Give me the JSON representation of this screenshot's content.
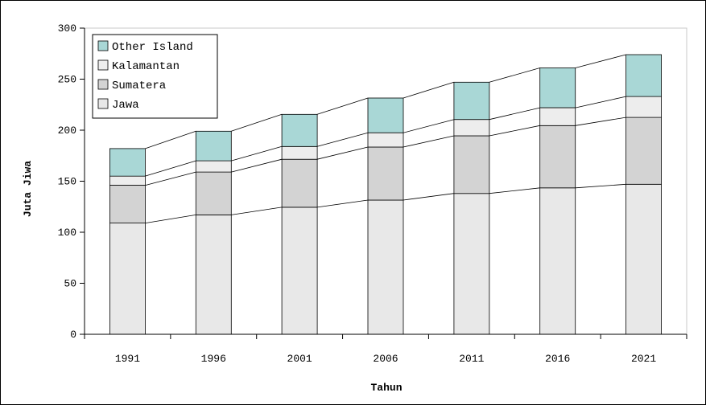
{
  "chart_data": {
    "type": "bar",
    "stacked": true,
    "categories": [
      "1991",
      "1996",
      "2001",
      "2006",
      "2011",
      "2016",
      "2021"
    ],
    "series": [
      {
        "name": "Jawa",
        "values": [
          109,
          117,
          124.5,
          131.5,
          138,
          143.5,
          147
        ],
        "color": "#e8e8e8"
      },
      {
        "name": "Sumatera",
        "values": [
          37,
          42,
          47,
          52,
          56.5,
          61,
          65.5
        ],
        "color": "#d3d3d3"
      },
      {
        "name": "Kalamantan",
        "values": [
          9,
          11,
          12.5,
          14,
          16,
          17.5,
          20.5
        ],
        "color": "#ededed"
      },
      {
        "name": "Other Island",
        "values": [
          27,
          29,
          31.5,
          34,
          36.5,
          39,
          41
        ],
        "color": "#a9d7d6"
      }
    ],
    "xlabel": "Tahun",
    "ylabel": "Juta Jiwa",
    "ylim": [
      0,
      300
    ],
    "yticks": [
      "0",
      "50",
      "100",
      "150",
      "200",
      "250",
      "300"
    ],
    "legend": {
      "position": "top-left",
      "order": [
        "Other Island",
        "Kalamantan",
        "Sumatera",
        "Jawa"
      ]
    },
    "connector_lines": true,
    "grid": false
  }
}
